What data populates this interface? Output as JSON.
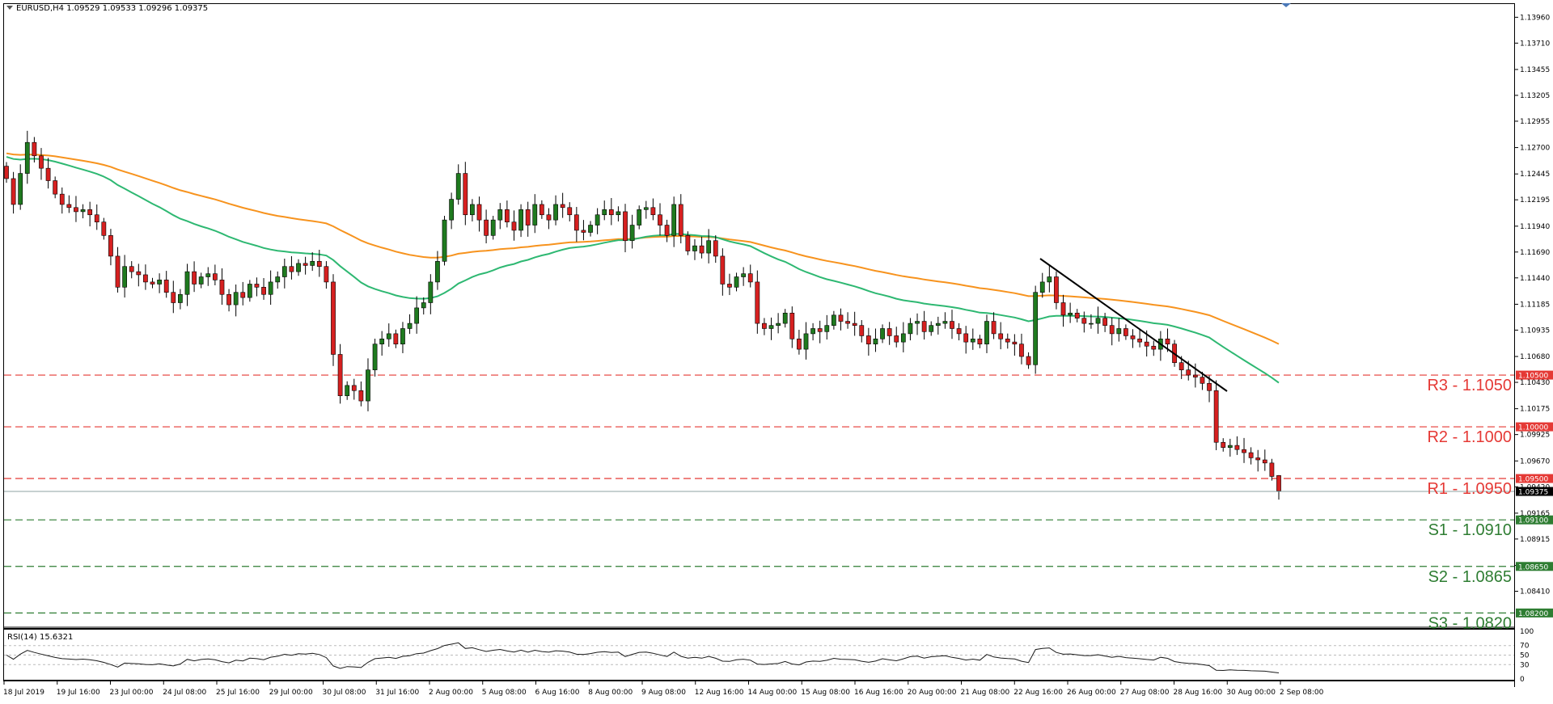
{
  "header": {
    "symbol_text": "EURUSD,H4  1.09529 1.09533 1.09296 1.09375",
    "rsi_label": "RSI(14) 15.6321"
  },
  "colors": {
    "bull": "#1f7a1f",
    "bear": "#d62020",
    "ma_slow": "#f7931e",
    "ma_fast": "#2eb872",
    "resistance": "#e53935",
    "support": "#2e7d32",
    "trendline": "#000000",
    "current_price": "#8fa3a3"
  },
  "chart_data": {
    "type": "candlestick",
    "title": "EURUSD,H4",
    "ohlc_latest": {
      "open": 1.09529,
      "high": 1.09533,
      "low": 1.09296,
      "close": 1.09375
    },
    "current_price": 1.09375,
    "ylim": [
      1.0807,
      1.1408
    ],
    "y_ticks": [
      "1.13960",
      "1.13710",
      "1.13455",
      "1.13205",
      "1.12955",
      "1.12700",
      "1.12445",
      "1.12195",
      "1.11940",
      "1.11690",
      "1.11440",
      "1.11185",
      "1.10935",
      "1.10680",
      "1.10430",
      "1.10175",
      "1.09925",
      "1.09670",
      "1.09420",
      "1.09165",
      "1.08915",
      "1.08660",
      "1.08410"
    ],
    "x_labels": [
      "18 Jul 2019",
      "19 Jul 16:00",
      "23 Jul 00:00",
      "24 Jul 08:00",
      "25 Jul 16:00",
      "29 Jul 00:00",
      "30 Jul 08:00",
      "31 Jul 16:00",
      "2 Aug 00:00",
      "5 Aug 08:00",
      "6 Aug 16:00",
      "8 Aug 00:00",
      "9 Aug 08:00",
      "12 Aug 16:00",
      "14 Aug 00:00",
      "15 Aug 08:00",
      "16 Aug 16:00",
      "20 Aug 00:00",
      "21 Aug 08:00",
      "22 Aug 16:00",
      "26 Aug 00:00",
      "27 Aug 08:00",
      "28 Aug 16:00",
      "30 Aug 00:00",
      "2 Sep 08:00"
    ],
    "closes": [
      1.124,
      1.1215,
      1.1245,
      1.1275,
      1.1262,
      1.125,
      1.1238,
      1.1225,
      1.1215,
      1.1212,
      1.1208,
      1.121,
      1.1205,
      1.1198,
      1.1185,
      1.1165,
      1.1135,
      1.1155,
      1.115,
      1.1147,
      1.114,
      1.1138,
      1.1142,
      1.113,
      1.112,
      1.1128,
      1.115,
      1.1138,
      1.1145,
      1.1148,
      1.1142,
      1.1128,
      1.1118,
      1.113,
      1.1125,
      1.1138,
      1.1135,
      1.1128,
      1.114,
      1.1145,
      1.1155,
      1.115,
      1.1158,
      1.1156,
      1.116,
      1.1155,
      1.114,
      1.107,
      1.103,
      1.104,
      1.1035,
      1.1025,
      1.1055,
      1.108,
      1.1085,
      1.109,
      1.108,
      1.1095,
      1.11,
      1.1115,
      1.112,
      1.114,
      1.116,
      1.12,
      1.122,
      1.1245,
      1.1205,
      1.1215,
      1.12,
      1.1185,
      1.12,
      1.121,
      1.1198,
      1.119,
      1.121,
      1.1195,
      1.1215,
      1.1205,
      1.12,
      1.1215,
      1.1212,
      1.1205,
      1.119,
      1.1188,
      1.1195,
      1.1205,
      1.121,
      1.1205,
      1.1208,
      1.118,
      1.1195,
      1.121,
      1.1212,
      1.1205,
      1.1195,
      1.1185,
      1.1215,
      1.1185,
      1.117,
      1.1175,
      1.1168,
      1.118,
      1.1165,
      1.1138,
      1.1135,
      1.1145,
      1.1148,
      1.114,
      1.11,
      1.1095,
      1.1098,
      1.11,
      1.111,
      1.1085,
      1.1075,
      1.109,
      1.1095,
      1.1092,
      1.1098,
      1.1108,
      1.1102,
      1.11,
      1.1098,
      1.1088,
      1.108,
      1.1085,
      1.1095,
      1.1088,
      1.1082,
      1.109,
      1.11,
      1.1102,
      1.1092,
      1.1098,
      1.11,
      1.1102,
      1.1095,
      1.109,
      1.1082,
      1.1085,
      1.108,
      1.1102,
      1.109,
      1.1085,
      1.1082,
      1.108,
      1.1068,
      1.106,
      1.113,
      1.114,
      1.1145,
      1.112,
      1.1108,
      1.111,
      1.1105,
      1.11,
      1.11,
      1.1105,
      1.1098,
      1.109,
      1.1095,
      1.1088,
      1.1085,
      1.1082,
      1.1078,
      1.1075,
      1.1085,
      1.108,
      1.1062,
      1.1055,
      1.105,
      1.1048,
      1.1042,
      1.1035,
      1.0985,
      1.098,
      1.0982,
      1.0978,
      1.0975,
      1.097,
      1.0968,
      1.0965,
      1.0952,
      1.0938
    ]
  },
  "levels": [
    {
      "label": "R3 - 1.1050",
      "tag": "1.10500",
      "price": 1.105,
      "kind": "resistance"
    },
    {
      "label": "R2 - 1.1000",
      "tag": "1.10000",
      "price": 1.1,
      "kind": "resistance"
    },
    {
      "label": "R1 - 1.0950",
      "tag": "1.09500",
      "price": 1.095,
      "kind": "resistance"
    },
    {
      "label": "S1 - 1.0910",
      "tag": "1.09100",
      "price": 1.091,
      "kind": "support"
    },
    {
      "label": "S2 - 1.0865",
      "tag": "1.08650",
      "price": 1.0865,
      "kind": "support"
    },
    {
      "label": "S3 - 1.0820",
      "tag": "1.08200",
      "price": 1.082,
      "kind": "support"
    }
  ],
  "current_tag": "1.09375",
  "rsi": {
    "value": 15.6321,
    "levels": [
      "100",
      "70",
      "50",
      "30",
      "0"
    ]
  }
}
